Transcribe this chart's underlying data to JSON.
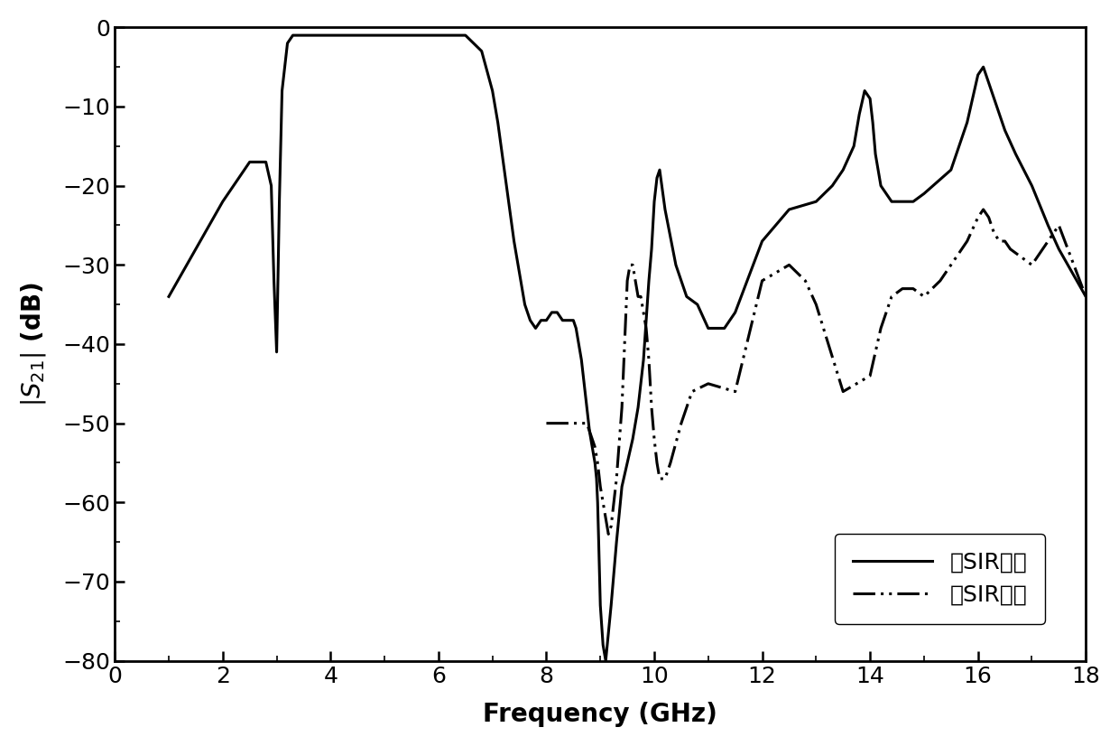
{
  "xlabel": "Frequency (GHz)",
  "ylabel": "|S_21| (dB)",
  "xlim": [
    0,
    18
  ],
  "ylim": [
    -80,
    0
  ],
  "xticks": [
    0,
    2,
    4,
    6,
    8,
    10,
    12,
    14,
    16,
    18
  ],
  "yticks": [
    0,
    -10,
    -20,
    -30,
    -40,
    -50,
    -60,
    -70,
    -80
  ],
  "legend_labels": [
    "无SIR加载",
    "有SIR加载"
  ],
  "line_color": "#000000",
  "line_width": 2.2,
  "background_color": "#ffffff",
  "curve1_x": [
    1.0,
    1.5,
    2.0,
    2.5,
    2.8,
    2.9,
    2.95,
    3.0,
    3.05,
    3.1,
    3.2,
    3.3,
    3.5,
    4.0,
    4.5,
    5.0,
    5.5,
    6.0,
    6.5,
    6.8,
    7.0,
    7.1,
    7.2,
    7.4,
    7.6,
    7.7,
    7.8,
    7.9,
    8.0,
    8.1,
    8.2,
    8.3,
    8.4,
    8.45,
    8.5,
    8.55,
    8.6,
    8.65,
    8.7,
    8.75,
    8.8,
    8.85,
    8.9,
    8.93,
    8.95,
    8.97,
    9.0,
    9.05,
    9.1,
    9.2,
    9.3,
    9.4,
    9.5,
    9.6,
    9.7,
    9.8,
    9.85,
    9.9,
    9.95,
    10.0,
    10.05,
    10.1,
    10.2,
    10.4,
    10.6,
    10.8,
    11.0,
    11.3,
    11.5,
    12.0,
    12.5,
    13.0,
    13.3,
    13.5,
    13.7,
    13.8,
    13.9,
    14.0,
    14.05,
    14.1,
    14.2,
    14.4,
    14.6,
    14.8,
    15.0,
    15.5,
    15.8,
    16.0,
    16.1,
    16.2,
    16.3,
    16.5,
    16.7,
    17.0,
    17.3,
    17.5,
    18.0
  ],
  "curve1_y": [
    -34,
    -28,
    -22,
    -17,
    -17,
    -20,
    -32,
    -41,
    -22,
    -8,
    -2,
    -1,
    -1,
    -1,
    -1,
    -1,
    -1,
    -1,
    -1,
    -3,
    -8,
    -12,
    -17,
    -27,
    -35,
    -37,
    -38,
    -37,
    -37,
    -36,
    -36,
    -37,
    -37,
    -37,
    -37,
    -38,
    -40,
    -42,
    -45,
    -48,
    -51,
    -53,
    -55,
    -57,
    -60,
    -65,
    -73,
    -78,
    -80,
    -73,
    -65,
    -58,
    -55,
    -52,
    -48,
    -42,
    -37,
    -32,
    -28,
    -22,
    -19,
    -18,
    -23,
    -30,
    -34,
    -35,
    -38,
    -38,
    -36,
    -27,
    -23,
    -22,
    -20,
    -18,
    -15,
    -11,
    -8,
    -9,
    -12,
    -16,
    -20,
    -22,
    -22,
    -22,
    -21,
    -18,
    -12,
    -6,
    -5,
    -7,
    -9,
    -13,
    -16,
    -20,
    -25,
    -28,
    -34
  ],
  "curve2_x": [
    8.0,
    8.1,
    8.2,
    8.3,
    8.4,
    8.5,
    8.55,
    8.6,
    8.65,
    8.7,
    8.75,
    8.8,
    8.85,
    8.9,
    8.95,
    9.0,
    9.05,
    9.1,
    9.15,
    9.2,
    9.3,
    9.4,
    9.5,
    9.55,
    9.6,
    9.65,
    9.7,
    9.75,
    9.8,
    9.85,
    9.9,
    9.95,
    10.0,
    10.05,
    10.1,
    10.2,
    10.3,
    10.5,
    10.7,
    11.0,
    11.5,
    12.0,
    12.5,
    12.8,
    13.0,
    13.5,
    14.0,
    14.2,
    14.4,
    14.6,
    14.8,
    15.0,
    15.3,
    15.5,
    15.8,
    16.0,
    16.1,
    16.2,
    16.3,
    16.4,
    16.5,
    16.6,
    16.8,
    17.0,
    17.3,
    17.5,
    18.0
  ],
  "curve2_y": [
    -50,
    -50,
    -50,
    -50,
    -50,
    -50,
    -50,
    -50,
    -50,
    -50,
    -50,
    -51,
    -52,
    -53,
    -55,
    -58,
    -60,
    -62,
    -64,
    -63,
    -57,
    -48,
    -32,
    -30,
    -30,
    -32,
    -34,
    -34,
    -36,
    -38,
    -42,
    -48,
    -52,
    -55,
    -57,
    -57,
    -55,
    -50,
    -46,
    -45,
    -46,
    -32,
    -30,
    -32,
    -35,
    -46,
    -44,
    -38,
    -34,
    -33,
    -33,
    -34,
    -32,
    -30,
    -27,
    -24,
    -23,
    -24,
    -26,
    -27,
    -27,
    -28,
    -29,
    -30,
    -27,
    -25,
    -34
  ]
}
